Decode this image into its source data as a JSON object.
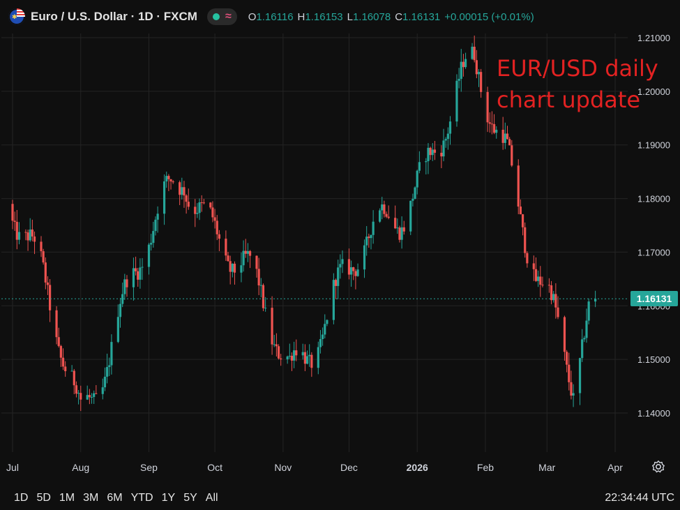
{
  "header": {
    "symbol": "Euro / U.S. Dollar · 1D · FXCM",
    "ohlc": [
      {
        "label": "O",
        "value": "1.16116"
      },
      {
        "label": "H",
        "value": "1.16153"
      },
      {
        "label": "L",
        "value": "1.16078"
      },
      {
        "label": "C",
        "value": "1.16131"
      }
    ],
    "change": "+0.00015 (+0.01%)"
  },
  "annotation": "EUR/USD daily\nchart update",
  "last_price_label": "1.16131",
  "timeframes": [
    "1D",
    "5D",
    "1M",
    "3M",
    "6M",
    "YTD",
    "1Y",
    "5Y",
    "All"
  ],
  "clock": "22:34:44 UTC",
  "colors": {
    "up": "#26a69a",
    "down": "#ef5350",
    "background": "#0f0f0f",
    "grid": "#242424",
    "annotation": "#e32222"
  },
  "icons": [
    "eur-usd-flag-icon",
    "status-dot-icon",
    "wave-icon",
    "settings-gear-icon"
  ],
  "chart_data": {
    "type": "candlestick",
    "x_tick_labels": [
      "Jul",
      "Aug",
      "Sep",
      "Oct",
      "Nov",
      "Dec",
      "2026",
      "Feb",
      "Mar",
      "Apr"
    ],
    "y_tick_labels": [
      "1.21000",
      "1.20000",
      "1.19000",
      "1.18000",
      "1.17000",
      "1.16000",
      "1.15000",
      "1.14000"
    ],
    "ylim": [
      1.1335,
      1.2155
    ],
    "grid": true,
    "last_price": 1.16131,
    "key_points": [
      {
        "date": "2025-07-01",
        "close": 1.179
      },
      {
        "date": "2025-08-01",
        "close": 1.141
      },
      {
        "date": "2025-09-17",
        "close": 1.186
      },
      {
        "date": "2025-11-04",
        "close": 1.149
      },
      {
        "date": "2025-12-24",
        "close": 1.179
      },
      {
        "date": "2026-01-27",
        "close": 1.203
      },
      {
        "date": "2026-02-11",
        "close": 1.189
      },
      {
        "date": "2026-03-13",
        "close": 1.143
      },
      {
        "date": "2026-03-23",
        "close": 1.16131
      }
    ]
  }
}
